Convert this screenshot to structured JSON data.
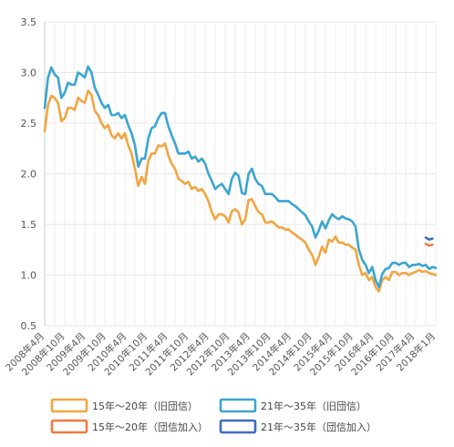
{
  "chart_data": {
    "type": "line",
    "title": "",
    "xlabel": "",
    "ylabel": "",
    "ylim": [
      0.5,
      3.5
    ],
    "yticks": [
      "0.5",
      "1.0",
      "1.5",
      "2.0",
      "2.5",
      "3.0",
      "3.5"
    ],
    "grid": true,
    "legend_position": "bottom",
    "xticks": [
      "2008年4月",
      "2008年10月",
      "2009年4月",
      "2009年10月",
      "2010年4月",
      "2010年10月",
      "2011年4月",
      "2011年10月",
      "2012年4月",
      "2012年10月",
      "2013年4月",
      "2013年10月",
      "2014年4月",
      "2014年10月",
      "2015年4月",
      "2015年10月",
      "2016年4月",
      "2016年10月",
      "2017年4月",
      "2018年1月"
    ],
    "series": [
      {
        "name": "15年〜20年（旧団信）",
        "color": "#f2a541",
        "points": [
          [
            "2008-04",
            2.42
          ],
          [
            "2008-05",
            2.68
          ],
          [
            "2008-06",
            2.77
          ],
          [
            "2008-07",
            2.75
          ],
          [
            "2008-08",
            2.7
          ],
          [
            "2008-09",
            2.52
          ],
          [
            "2008-10",
            2.55
          ],
          [
            "2008-11",
            2.65
          ],
          [
            "2008-12",
            2.65
          ],
          [
            "2009-01",
            2.63
          ],
          [
            "2009-02",
            2.75
          ],
          [
            "2009-03",
            2.72
          ],
          [
            "2009-04",
            2.7
          ],
          [
            "2009-05",
            2.82
          ],
          [
            "2009-06",
            2.78
          ],
          [
            "2009-07",
            2.62
          ],
          [
            "2009-08",
            2.58
          ],
          [
            "2009-09",
            2.5
          ],
          [
            "2009-10",
            2.45
          ],
          [
            "2009-11",
            2.48
          ],
          [
            "2009-12",
            2.38
          ],
          [
            "2010-01",
            2.35
          ],
          [
            "2010-02",
            2.4
          ],
          [
            "2010-03",
            2.35
          ],
          [
            "2010-04",
            2.4
          ],
          [
            "2010-05",
            2.28
          ],
          [
            "2010-06",
            2.2
          ],
          [
            "2010-07",
            2.05
          ],
          [
            "2010-08",
            1.88
          ],
          [
            "2010-09",
            1.97
          ],
          [
            "2010-10",
            1.9
          ],
          [
            "2010-11",
            2.13
          ],
          [
            "2010-12",
            2.2
          ],
          [
            "2011-01",
            2.2
          ],
          [
            "2011-02",
            2.28
          ],
          [
            "2011-03",
            2.27
          ],
          [
            "2011-04",
            2.3
          ],
          [
            "2011-05",
            2.18
          ],
          [
            "2011-06",
            2.1
          ],
          [
            "2011-07",
            2.05
          ],
          [
            "2011-08",
            1.95
          ],
          [
            "2011-09",
            1.93
          ],
          [
            "2011-10",
            1.9
          ],
          [
            "2011-11",
            1.92
          ],
          [
            "2011-12",
            1.85
          ],
          [
            "2012-01",
            1.87
          ],
          [
            "2012-02",
            1.83
          ],
          [
            "2012-03",
            1.85
          ],
          [
            "2012-04",
            1.8
          ],
          [
            "2012-05",
            1.73
          ],
          [
            "2012-06",
            1.62
          ],
          [
            "2012-07",
            1.55
          ],
          [
            "2012-08",
            1.6
          ],
          [
            "2012-09",
            1.6
          ],
          [
            "2012-10",
            1.58
          ],
          [
            "2012-11",
            1.52
          ],
          [
            "2012-12",
            1.63
          ],
          [
            "2013-01",
            1.65
          ],
          [
            "2013-02",
            1.62
          ],
          [
            "2013-03",
            1.5
          ],
          [
            "2013-04",
            1.55
          ],
          [
            "2013-05",
            1.74
          ],
          [
            "2013-06",
            1.75
          ],
          [
            "2013-07",
            1.68
          ],
          [
            "2013-08",
            1.62
          ],
          [
            "2013-09",
            1.6
          ],
          [
            "2013-10",
            1.52
          ],
          [
            "2013-11",
            1.52
          ],
          [
            "2013-12",
            1.53
          ],
          [
            "2014-01",
            1.5
          ],
          [
            "2014-02",
            1.47
          ],
          [
            "2014-03",
            1.47
          ],
          [
            "2014-04",
            1.45
          ],
          [
            "2014-05",
            1.45
          ],
          [
            "2014-06",
            1.42
          ],
          [
            "2014-07",
            1.4
          ],
          [
            "2014-08",
            1.37
          ],
          [
            "2014-09",
            1.35
          ],
          [
            "2014-10",
            1.32
          ],
          [
            "2014-11",
            1.25
          ],
          [
            "2014-12",
            1.2
          ],
          [
            "2015-01",
            1.1
          ],
          [
            "2015-02",
            1.18
          ],
          [
            "2015-03",
            1.28
          ],
          [
            "2015-04",
            1.22
          ],
          [
            "2015-05",
            1.35
          ],
          [
            "2015-06",
            1.33
          ],
          [
            "2015-07",
            1.38
          ],
          [
            "2015-08",
            1.32
          ],
          [
            "2015-09",
            1.32
          ],
          [
            "2015-10",
            1.3
          ],
          [
            "2015-11",
            1.3
          ],
          [
            "2015-12",
            1.27
          ],
          [
            "2016-01",
            1.25
          ],
          [
            "2016-02",
            1.1
          ],
          [
            "2016-03",
            1.0
          ],
          [
            "2016-04",
            1.02
          ],
          [
            "2016-05",
            0.95
          ],
          [
            "2016-06",
            0.98
          ],
          [
            "2016-07",
            0.88
          ],
          [
            "2016-08",
            0.84
          ],
          [
            "2016-09",
            0.95
          ],
          [
            "2016-10",
            0.98
          ],
          [
            "2016-11",
            0.95
          ],
          [
            "2016-12",
            1.03
          ],
          [
            "2017-01",
            1.03
          ],
          [
            "2017-02",
            1.0
          ],
          [
            "2017-03",
            1.02
          ],
          [
            "2017-04",
            1.02
          ],
          [
            "2017-05",
            1.0
          ],
          [
            "2017-06",
            1.02
          ],
          [
            "2017-07",
            1.03
          ],
          [
            "2017-08",
            1.05
          ],
          [
            "2017-09",
            1.03
          ],
          [
            "2017-10",
            1.04
          ],
          [
            "2017-11",
            1.02
          ],
          [
            "2017-12",
            1.01
          ],
          [
            "2018-01",
            1.0
          ]
        ]
      },
      {
        "name": "21年〜35年（旧団信）",
        "color": "#3aa5cf",
        "points": [
          [
            "2008-04",
            2.65
          ],
          [
            "2008-05",
            2.95
          ],
          [
            "2008-06",
            3.05
          ],
          [
            "2008-07",
            2.98
          ],
          [
            "2008-08",
            2.95
          ],
          [
            "2008-09",
            2.75
          ],
          [
            "2008-10",
            2.8
          ],
          [
            "2008-11",
            2.9
          ],
          [
            "2008-12",
            2.88
          ],
          [
            "2009-01",
            2.88
          ],
          [
            "2009-02",
            3.0
          ],
          [
            "2009-03",
            2.98
          ],
          [
            "2009-04",
            2.95
          ],
          [
            "2009-05",
            3.06
          ],
          [
            "2009-06",
            3.0
          ],
          [
            "2009-07",
            2.85
          ],
          [
            "2009-08",
            2.78
          ],
          [
            "2009-09",
            2.7
          ],
          [
            "2009-10",
            2.65
          ],
          [
            "2009-11",
            2.68
          ],
          [
            "2009-12",
            2.58
          ],
          [
            "2010-01",
            2.58
          ],
          [
            "2010-02",
            2.6
          ],
          [
            "2010-03",
            2.55
          ],
          [
            "2010-04",
            2.58
          ],
          [
            "2010-05",
            2.48
          ],
          [
            "2010-06",
            2.4
          ],
          [
            "2010-07",
            2.28
          ],
          [
            "2010-08",
            2.07
          ],
          [
            "2010-09",
            2.15
          ],
          [
            "2010-10",
            2.15
          ],
          [
            "2010-11",
            2.35
          ],
          [
            "2010-12",
            2.45
          ],
          [
            "2011-01",
            2.47
          ],
          [
            "2011-02",
            2.55
          ],
          [
            "2011-03",
            2.6
          ],
          [
            "2011-04",
            2.6
          ],
          [
            "2011-05",
            2.47
          ],
          [
            "2011-06",
            2.38
          ],
          [
            "2011-07",
            2.3
          ],
          [
            "2011-08",
            2.2
          ],
          [
            "2011-09",
            2.2
          ],
          [
            "2011-10",
            2.2
          ],
          [
            "2011-11",
            2.22
          ],
          [
            "2011-12",
            2.15
          ],
          [
            "2012-01",
            2.17
          ],
          [
            "2012-02",
            2.12
          ],
          [
            "2012-03",
            2.15
          ],
          [
            "2012-04",
            2.1
          ],
          [
            "2012-05",
            2.0
          ],
          [
            "2012-06",
            1.93
          ],
          [
            "2012-07",
            1.85
          ],
          [
            "2012-08",
            1.88
          ],
          [
            "2012-09",
            1.9
          ],
          [
            "2012-10",
            1.85
          ],
          [
            "2012-11",
            1.8
          ],
          [
            "2012-12",
            1.95
          ],
          [
            "2013-01",
            2.01
          ],
          [
            "2013-02",
            1.98
          ],
          [
            "2013-03",
            1.81
          ],
          [
            "2013-04",
            1.8
          ],
          [
            "2013-05",
            2.0
          ],
          [
            "2013-06",
            2.05
          ],
          [
            "2013-07",
            1.95
          ],
          [
            "2013-08",
            1.9
          ],
          [
            "2013-09",
            1.88
          ],
          [
            "2013-10",
            1.8
          ],
          [
            "2013-11",
            1.8
          ],
          [
            "2013-12",
            1.8
          ],
          [
            "2014-01",
            1.77
          ],
          [
            "2014-02",
            1.73
          ],
          [
            "2014-03",
            1.73
          ],
          [
            "2014-04",
            1.73
          ],
          [
            "2014-05",
            1.73
          ],
          [
            "2014-06",
            1.7
          ],
          [
            "2014-07",
            1.68
          ],
          [
            "2014-08",
            1.65
          ],
          [
            "2014-09",
            1.62
          ],
          [
            "2014-10",
            1.59
          ],
          [
            "2014-11",
            1.53
          ],
          [
            "2014-12",
            1.48
          ],
          [
            "2015-01",
            1.37
          ],
          [
            "2015-02",
            1.44
          ],
          [
            "2015-03",
            1.53
          ],
          [
            "2015-04",
            1.46
          ],
          [
            "2015-05",
            1.54
          ],
          [
            "2015-06",
            1.6
          ],
          [
            "2015-07",
            1.57
          ],
          [
            "2015-08",
            1.55
          ],
          [
            "2015-09",
            1.58
          ],
          [
            "2015-10",
            1.56
          ],
          [
            "2015-11",
            1.55
          ],
          [
            "2015-12",
            1.53
          ],
          [
            "2016-01",
            1.48
          ],
          [
            "2016-02",
            1.25
          ],
          [
            "2016-03",
            1.15
          ],
          [
            "2016-04",
            1.1
          ],
          [
            "2016-05",
            1.02
          ],
          [
            "2016-06",
            1.08
          ],
          [
            "2016-07",
            0.95
          ],
          [
            "2016-08",
            0.88
          ],
          [
            "2016-09",
            1.01
          ],
          [
            "2016-10",
            1.06
          ],
          [
            "2016-11",
            1.07
          ],
          [
            "2016-12",
            1.12
          ],
          [
            "2017-01",
            1.12
          ],
          [
            "2017-02",
            1.1
          ],
          [
            "2017-03",
            1.12
          ],
          [
            "2017-04",
            1.12
          ],
          [
            "2017-05",
            1.08
          ],
          [
            "2017-06",
            1.1
          ],
          [
            "2017-07",
            1.1
          ],
          [
            "2017-08",
            1.11
          ],
          [
            "2017-09",
            1.09
          ],
          [
            "2017-10",
            1.1
          ],
          [
            "2017-11",
            1.06
          ],
          [
            "2017-12",
            1.08
          ],
          [
            "2018-01",
            1.07
          ]
        ]
      },
      {
        "name": "15年〜20年（団信加入）",
        "color": "#f07b3f",
        "points": [
          [
            "2017-10",
            1.31
          ],
          [
            "2017-11",
            1.29
          ],
          [
            "2017-12",
            1.3
          ]
        ]
      },
      {
        "name": "21年〜35年（団信加入）",
        "color": "#3d6cc4",
        "points": [
          [
            "2017-10",
            1.37
          ],
          [
            "2017-11",
            1.35
          ],
          [
            "2017-12",
            1.36
          ]
        ]
      }
    ]
  }
}
